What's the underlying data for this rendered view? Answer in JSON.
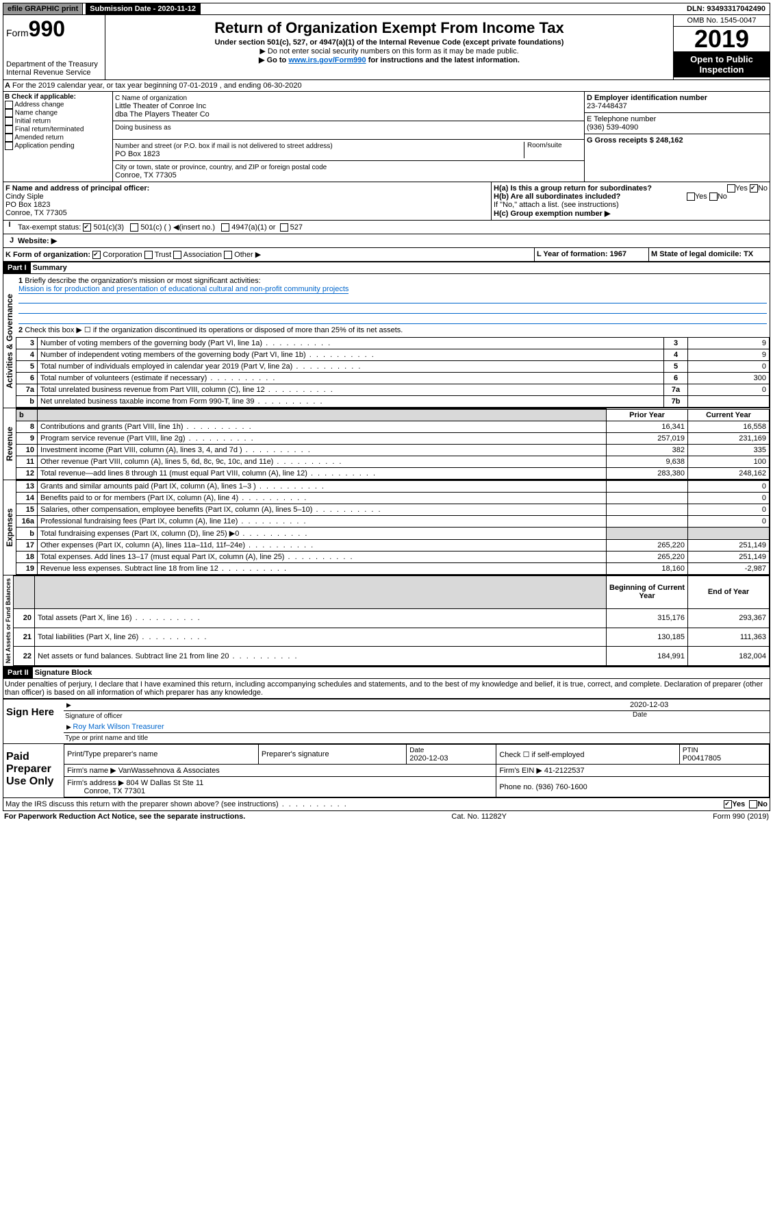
{
  "topbar": {
    "efile": "efile GRAPHIC print",
    "subdate_label": "Submission Date - 2020-11-12",
    "dln": "DLN: 93493317042490"
  },
  "header": {
    "form_word": "Form",
    "form_num": "990",
    "dept": "Department of the Treasury\nInternal Revenue Service",
    "title": "Return of Organization Exempt From Income Tax",
    "sub1": "Under section 501(c), 527, or 4947(a)(1) of the Internal Revenue Code (except private foundations)",
    "sub2": "▶ Do not enter social security numbers on this form as it may be made public.",
    "sub3_pre": "▶ Go to ",
    "sub3_link": "www.irs.gov/Form990",
    "sub3_post": " for instructions and the latest information.",
    "omb": "OMB No. 1545-0047",
    "year": "2019",
    "otp": "Open to Public Inspection"
  },
  "sectionA": "For the 2019 calendar year, or tax year beginning 07-01-2019    , and ending 06-30-2020",
  "B": {
    "title": "B Check if applicable:",
    "items": [
      "Address change",
      "Name change",
      "Initial return",
      "Final return/terminated",
      "Amended return",
      "Application pending"
    ]
  },
  "C": {
    "namelabel": "C Name of organization",
    "name": "Little Theater of Conroe Inc\ndba The Players Theater Co",
    "dba": "Doing business as",
    "streetlabel": "Number and street (or P.O. box if mail is not delivered to street address)",
    "room": "Room/suite",
    "street": "PO Box 1823",
    "citylabel": "City or town, state or province, country, and ZIP or foreign postal code",
    "city": "Conroe, TX  77305"
  },
  "D": {
    "label": "D Employer identification number",
    "val": "23-7448437"
  },
  "E": {
    "label": "E Telephone number",
    "val": "(936) 539-4090"
  },
  "G": {
    "label": "G Gross receipts $ 248,162"
  },
  "F": {
    "label": "F  Name and address of principal officer:",
    "name": "Cindy Siple",
    "street": "PO Box 1823",
    "city": "Conroe, TX  77305"
  },
  "H": {
    "a": "H(a)  Is this a group return for subordinates?",
    "a_yes": "Yes",
    "a_no": "No",
    "b": "H(b)  Are all subordinates included?",
    "b_yes": "Yes",
    "b_no": "No",
    "bnote": "If \"No,\" attach a list. (see instructions)",
    "c": "H(c)  Group exemption number ▶"
  },
  "I": {
    "label": "Tax-exempt status:",
    "c1": "501(c)(3)",
    "c2": "501(c) (  ) ◀(insert no.)",
    "c3": "4947(a)(1) or",
    "c4": "527"
  },
  "J": {
    "label": "Website: ▶"
  },
  "K": {
    "label": "K Form of organization:",
    "c1": "Corporation",
    "c2": "Trust",
    "c3": "Association",
    "c4": "Other ▶"
  },
  "L": {
    "label": "L Year of formation: 1967"
  },
  "M": {
    "label": "M State of legal domicile: TX"
  },
  "part1": {
    "bar": "Part I",
    "title": "Summary",
    "vlabel": "Activities & Governance",
    "r1": "Briefly describe the organization's mission or most significant activities:",
    "mission": "Mission is for production and presentation of educational cultural and non-profit community projects",
    "r2": "Check this box ▶ ☐  if the organization discontinued its operations or disposed of more than 25% of its net assets.",
    "rows": [
      {
        "n": "3",
        "t": "Number of voting members of the governing body (Part VI, line 1a)",
        "c": "3",
        "v": "9"
      },
      {
        "n": "4",
        "t": "Number of independent voting members of the governing body (Part VI, line 1b)",
        "c": "4",
        "v": "9"
      },
      {
        "n": "5",
        "t": "Total number of individuals employed in calendar year 2019 (Part V, line 2a)",
        "c": "5",
        "v": "0"
      },
      {
        "n": "6",
        "t": "Total number of volunteers (estimate if necessary)",
        "c": "6",
        "v": "300"
      },
      {
        "n": "7a",
        "t": "Total unrelated business revenue from Part VIII, column (C), line 12",
        "c": "7a",
        "v": "0"
      },
      {
        "n": "b",
        "t": "Net unrelated business taxable income from Form 990-T, line 39",
        "c": "7b",
        "v": ""
      }
    ]
  },
  "revenue": {
    "vlabel": "Revenue",
    "hdr_prior": "Prior Year",
    "hdr_curr": "Current Year",
    "rows": [
      {
        "n": "8",
        "t": "Contributions and grants (Part VIII, line 1h)",
        "p": "16,341",
        "c": "16,558"
      },
      {
        "n": "9",
        "t": "Program service revenue (Part VIII, line 2g)",
        "p": "257,019",
        "c": "231,169"
      },
      {
        "n": "10",
        "t": "Investment income (Part VIII, column (A), lines 3, 4, and 7d )",
        "p": "382",
        "c": "335"
      },
      {
        "n": "11",
        "t": "Other revenue (Part VIII, column (A), lines 5, 6d, 8c, 9c, 10c, and 11e)",
        "p": "9,638",
        "c": "100"
      },
      {
        "n": "12",
        "t": "Total revenue—add lines 8 through 11 (must equal Part VIII, column (A), line 12)",
        "p": "283,380",
        "c": "248,162"
      }
    ]
  },
  "expenses": {
    "vlabel": "Expenses",
    "rows": [
      {
        "n": "13",
        "t": "Grants and similar amounts paid (Part IX, column (A), lines 1–3 )",
        "p": "",
        "c": "0"
      },
      {
        "n": "14",
        "t": "Benefits paid to or for members (Part IX, column (A), line 4)",
        "p": "",
        "c": "0"
      },
      {
        "n": "15",
        "t": "Salaries, other compensation, employee benefits (Part IX, column (A), lines 5–10)",
        "p": "",
        "c": "0"
      },
      {
        "n": "16a",
        "t": "Professional fundraising fees (Part IX, column (A), line 11e)",
        "p": "",
        "c": "0"
      },
      {
        "n": "b",
        "t": "Total fundraising expenses (Part IX, column (D), line 25) ▶0",
        "p": "gray",
        "c": "gray"
      },
      {
        "n": "17",
        "t": "Other expenses (Part IX, column (A), lines 11a–11d, 11f–24e)",
        "p": "265,220",
        "c": "251,149"
      },
      {
        "n": "18",
        "t": "Total expenses. Add lines 13–17 (must equal Part IX, column (A), line 25)",
        "p": "265,220",
        "c": "251,149"
      },
      {
        "n": "19",
        "t": "Revenue less expenses. Subtract line 18 from line 12",
        "p": "18,160",
        "c": "-2,987"
      }
    ]
  },
  "netassets": {
    "vlabel": "Net Assets or Fund Balances",
    "hdr_prior": "Beginning of Current Year",
    "hdr_curr": "End of Year",
    "rows": [
      {
        "n": "20",
        "t": "Total assets (Part X, line 16)",
        "p": "315,176",
        "c": "293,367"
      },
      {
        "n": "21",
        "t": "Total liabilities (Part X, line 26)",
        "p": "130,185",
        "c": "111,363"
      },
      {
        "n": "22",
        "t": "Net assets or fund balances. Subtract line 21 from line 20",
        "p": "184,991",
        "c": "182,004"
      }
    ]
  },
  "part2": {
    "bar": "Part II",
    "title": "Signature Block",
    "decl": "Under penalties of perjury, I declare that I have examined this return, including accompanying schedules and statements, and to the best of my knowledge and belief, it is true, correct, and complete. Declaration of preparer (other than officer) is based on all information of which preparer has any knowledge."
  },
  "sign": {
    "here": "Sign Here",
    "sigoff": "Signature of officer",
    "date": "2020-12-03",
    "datelbl": "Date",
    "name": "Roy Mark Wilson  Treasurer",
    "typelbl": "Type or print name and title"
  },
  "paid": {
    "here": "Paid Preparer Use Only",
    "h1": "Print/Type preparer's name",
    "h2": "Preparer's signature",
    "h3": "Date",
    "h3v": "2020-12-03",
    "h4": "Check ☐ if self-employed",
    "h5": "PTIN",
    "ptin": "P00417805",
    "firm": "Firm's name    ▶ VanWassehnova & Associates",
    "ein": "Firm's EIN ▶ 41-2122537",
    "addr": "Firm's address ▶ 804 W Dallas St Ste 11",
    "addr2": "Conroe, TX  77301",
    "phone": "Phone no. (936) 760-1600"
  },
  "discuss": "May the IRS discuss this return with the preparer shown above? (see instructions)",
  "discuss_yes": "Yes",
  "discuss_no": "No",
  "footer": {
    "l": "For Paperwork Reduction Act Notice, see the separate instructions.",
    "c": "Cat. No. 11282Y",
    "r": "Form 990 (2019)"
  }
}
